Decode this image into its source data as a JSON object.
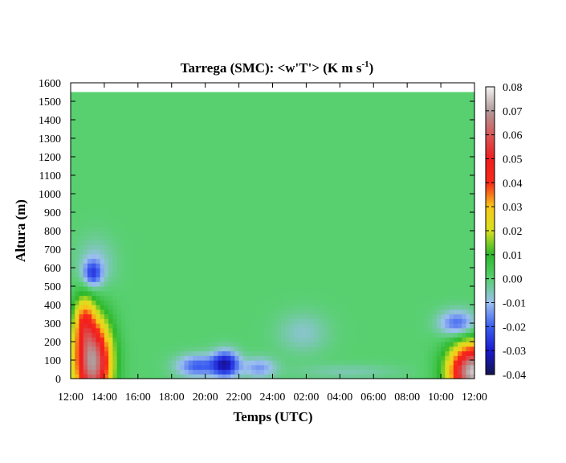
{
  "chart_data": {
    "type": "heatmap",
    "title": "Tarrega (SMC): <w'T'> (K m s",
    "title_superscript": "-1",
    "title_suffix": ")",
    "xlabel": "Temps (UTC)",
    "ylabel": "Altura (m)",
    "x_ticks": [
      "12:00",
      "14:00",
      "16:00",
      "18:00",
      "20:00",
      "22:00",
      "24:00",
      "02:00",
      "04:00",
      "06:00",
      "08:00",
      "10:00",
      "12:00"
    ],
    "y_ticks": [
      "0",
      "100",
      "200",
      "300",
      "400",
      "500",
      "600",
      "700",
      "800",
      "900",
      "1000",
      "1100",
      "1200",
      "1300",
      "1400",
      "1500",
      "1600"
    ],
    "xlim_hours": [
      0,
      24
    ],
    "ylim": [
      0,
      1600
    ],
    "data_top_m": 1550,
    "colorbar_ticks": [
      "0.08",
      "0.07",
      "0.06",
      "0.05",
      "0.04",
      "0.03",
      "0.02",
      "0.01",
      "0.00",
      "-0.01",
      "-0.02",
      "-0.03",
      "-0.04"
    ],
    "colorbar_range": [
      -0.04,
      0.08
    ],
    "colorscale": [
      {
        "v": -0.04,
        "color": "#141450"
      },
      {
        "v": -0.03,
        "color": "#1a1ad0"
      },
      {
        "v": -0.02,
        "color": "#3c5ef0"
      },
      {
        "v": -0.01,
        "color": "#9cc0f0"
      },
      {
        "v": 0.0,
        "color": "#58d070"
      },
      {
        "v": 0.01,
        "color": "#2cb82c"
      },
      {
        "v": 0.02,
        "color": "#d8e020"
      },
      {
        "v": 0.03,
        "color": "#f8c818"
      },
      {
        "v": 0.04,
        "color": "#f82a1a"
      },
      {
        "v": 0.05,
        "color": "#f01e1e"
      },
      {
        "v": 0.06,
        "color": "#d85858"
      },
      {
        "v": 0.07,
        "color": "#b09a9a"
      },
      {
        "v": 0.08,
        "color": "#f4f4f4"
      }
    ],
    "background_value": 0.0,
    "features": [
      {
        "label": "afternoon positive flux",
        "t": 1.3,
        "z": 90,
        "st": 1.1,
        "sz": 230,
        "value": 0.07
      },
      {
        "label": "afternoon positive flux upper",
        "t": 0.8,
        "z": 320,
        "st": 0.6,
        "sz": 140,
        "value": 0.025
      },
      {
        "label": "afternoon negative cell",
        "t": 1.3,
        "z": 570,
        "st": 0.55,
        "sz": 70,
        "value": -0.02
      },
      {
        "label": "afternoon entrainment",
        "t": 1.5,
        "z": 620,
        "st": 1.1,
        "sz": 140,
        "value": -0.008
      },
      {
        "label": "night negative 1",
        "t": 7.5,
        "z": 70,
        "st": 1.2,
        "sz": 60,
        "value": -0.02
      },
      {
        "label": "night negative core",
        "t": 9.2,
        "z": 80,
        "st": 0.8,
        "sz": 70,
        "value": -0.032
      },
      {
        "label": "night negative 2",
        "t": 11.2,
        "z": 60,
        "st": 1.0,
        "sz": 55,
        "value": -0.014
      },
      {
        "label": "night weak 1",
        "t": 13.8,
        "z": 250,
        "st": 1.5,
        "sz": 110,
        "value": -0.007
      },
      {
        "label": "night weak 2",
        "t": 16.5,
        "z": 40,
        "st": 3.0,
        "sz": 40,
        "value": -0.005
      },
      {
        "label": "morning positive flux",
        "t": 23.9,
        "z": 40,
        "st": 1.4,
        "sz": 150,
        "value": 0.075
      },
      {
        "label": "morning negative band",
        "t": 23.0,
        "z": 300,
        "st": 1.1,
        "sz": 70,
        "value": -0.02
      }
    ]
  }
}
